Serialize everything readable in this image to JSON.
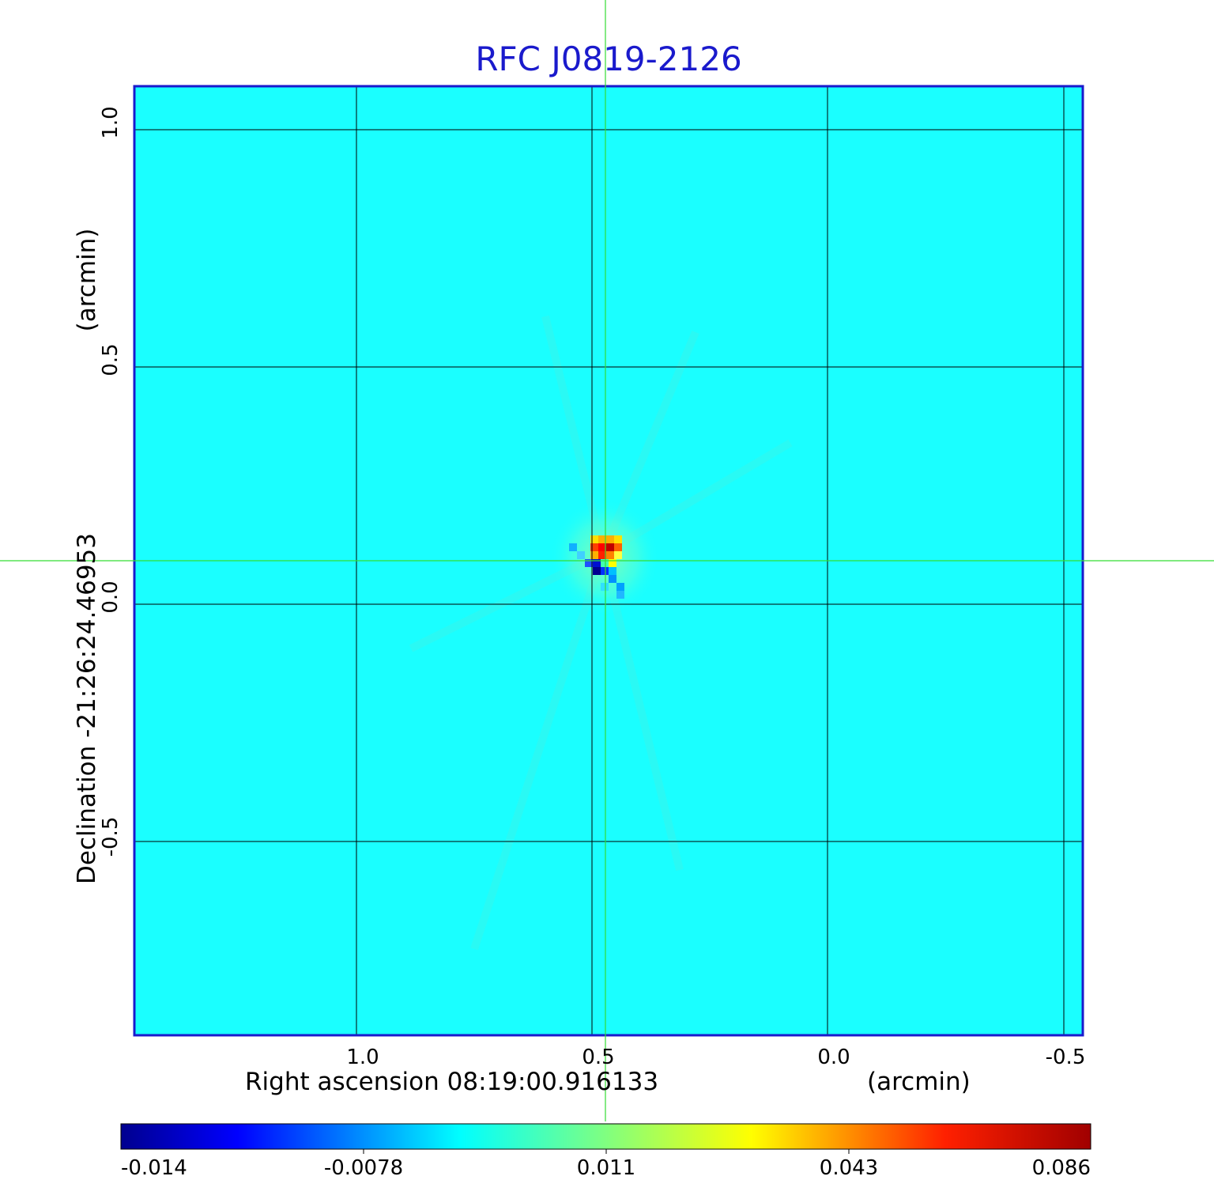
{
  "chart_data": {
    "type": "heatmap",
    "title": "RFC J0819-2126",
    "xlabel": "Right ascension  08:19:00.916133",
    "xunit": "(arcmin)",
    "ylabel": "Declination  -21:26:24.46953",
    "yunit": "(arcmin)",
    "x_ticks": [
      "1.0",
      "0.5",
      "0.0",
      "-0.5"
    ],
    "y_ticks": [
      "1.0",
      "0.5",
      "0.0",
      "-0.5"
    ],
    "xlim": [
      1.47,
      -0.54
    ],
    "ylim": [
      -0.91,
      1.09
    ],
    "grid": true,
    "colormap": "jet",
    "colorbar_ticks": [
      "-0.014",
      "-0.0078",
      "0.011",
      "0.043",
      "0.086"
    ],
    "background_value": 0.002,
    "peak": {
      "x": 0.49,
      "y": 0.09,
      "value": 0.086
    },
    "trough": {
      "x": 0.52,
      "y": 0.07,
      "value": -0.014
    },
    "crosshair": {
      "x": 0.47,
      "y": 0.09
    },
    "colors": {
      "frame": "#1a1acc",
      "crosshair": "#33dd33",
      "grid": "#000000",
      "background_cyan": "#1affff"
    }
  }
}
